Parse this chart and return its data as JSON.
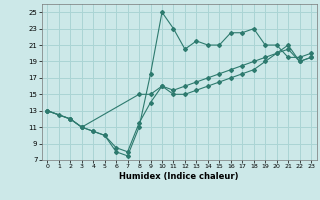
{
  "xlabel": "Humidex (Indice chaleur)",
  "bg_color": "#cce8e8",
  "grid_color": "#aad4d4",
  "line_color": "#2d7a6e",
  "xlim": [
    -0.5,
    23.5
  ],
  "ylim": [
    7,
    26
  ],
  "yticks": [
    7,
    9,
    11,
    13,
    15,
    17,
    19,
    21,
    23,
    25
  ],
  "xticks": [
    0,
    1,
    2,
    3,
    4,
    5,
    6,
    7,
    8,
    9,
    10,
    11,
    12,
    13,
    14,
    15,
    16,
    17,
    18,
    19,
    20,
    21,
    22,
    23
  ],
  "series": [
    {
      "x": [
        0,
        1,
        2,
        3,
        4,
        5,
        6,
        7,
        8,
        9,
        10,
        11,
        12,
        13,
        14,
        15,
        16,
        17,
        18,
        19,
        20,
        21,
        22,
        23
      ],
      "y": [
        13,
        12.5,
        12,
        11,
        10.5,
        10,
        8,
        7.5,
        11,
        17.5,
        25,
        23,
        20.5,
        21.5,
        21,
        21,
        22.5,
        22.5,
        23,
        21,
        21,
        19.5,
        19.5,
        20
      ]
    },
    {
      "x": [
        0,
        2,
        3,
        8,
        9,
        10,
        11,
        12,
        13,
        14,
        15,
        16,
        17,
        18,
        19,
        20,
        21,
        22,
        23
      ],
      "y": [
        13,
        12,
        11,
        15,
        15,
        16,
        15,
        15,
        15.5,
        16,
        16.5,
        17,
        17.5,
        18,
        19,
        20,
        21,
        19,
        19.5
      ]
    },
    {
      "x": [
        0,
        2,
        3,
        4,
        5,
        6,
        7,
        8,
        9,
        10,
        11,
        12,
        13,
        14,
        15,
        16,
        17,
        18,
        19,
        20,
        21,
        22,
        23
      ],
      "y": [
        13,
        12,
        11,
        10.5,
        10,
        8.5,
        8,
        11.5,
        14,
        16,
        15.5,
        16,
        16.5,
        17,
        17.5,
        18,
        18.5,
        19,
        19.5,
        20,
        20.5,
        19,
        19.5
      ]
    }
  ]
}
